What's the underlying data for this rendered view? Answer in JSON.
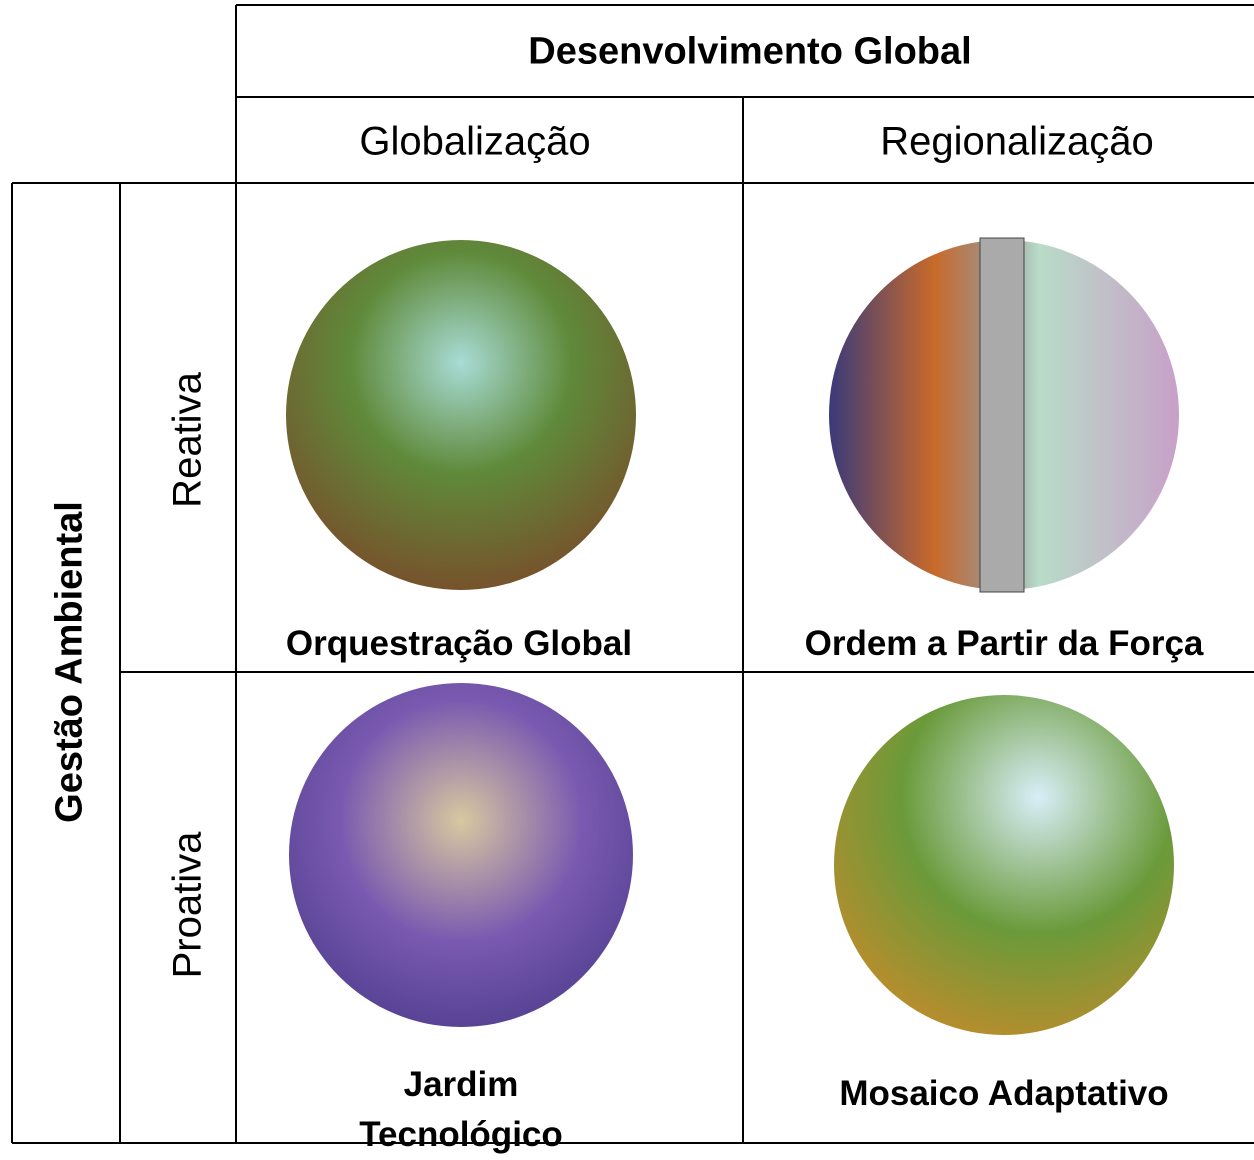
{
  "header": {
    "title": "Desenvolvimento Global",
    "columns": [
      "Globalização",
      "Regionalização"
    ]
  },
  "side": {
    "title": "Gestão Ambiental",
    "rows": [
      "Reativa",
      "Proativa"
    ]
  },
  "cells": [
    [
      "Orquestração Global",
      "Ordem a Partir da Força"
    ],
    [
      "Jardim Tecnológico",
      "Mosaico Adaptativo"
    ]
  ]
}
